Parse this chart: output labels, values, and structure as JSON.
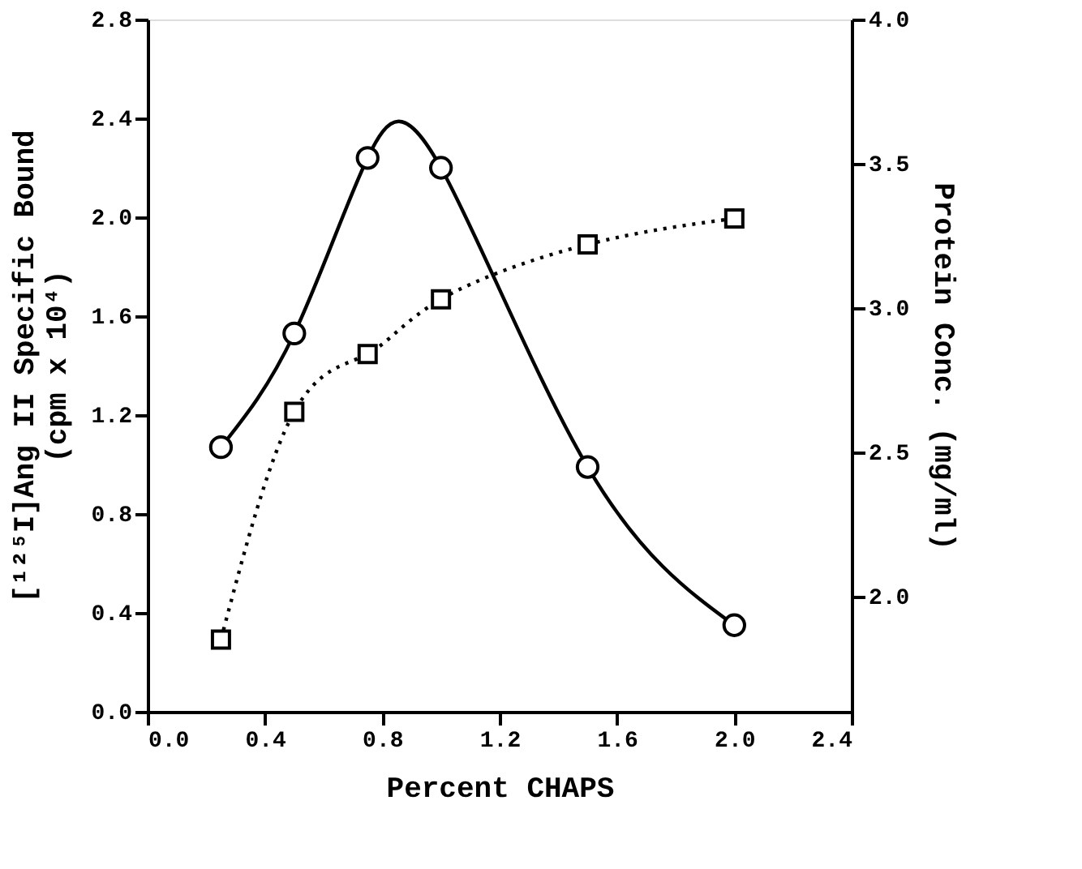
{
  "chart_data": {
    "type": "line",
    "xlabel": "Percent CHAPS",
    "ylabel": "[¹²⁵I]Ang II Specific Bound\n(cpm x 10⁴)",
    "y2label": "Protein Conc. (mg/ml)",
    "x": [
      0.25,
      0.5,
      0.75,
      1.0,
      1.5,
      2.0
    ],
    "series": [
      {
        "color": "#000000",
        "values": [
          1.07,
          1.53,
          2.24,
          2.2,
          0.99,
          0.35
        ],
        "marker": "circle",
        "line_style": "solid"
      },
      {
        "color": "#000000",
        "values": [
          1.85,
          2.64,
          2.84,
          3.03,
          3.22,
          3.31
        ],
        "marker": "square",
        "line_style": "dotted",
        "axis": "y2"
      }
    ],
    "xlim": [
      0.0,
      2.4
    ],
    "xticks": [
      {
        "value": 0.0,
        "label": "0.0"
      },
      0.4,
      0.8,
      1.2,
      1.6,
      {
        "value": 2.0,
        "label": "2.0"
      },
      2.4
    ],
    "ylim": [
      0.0,
      2.8
    ],
    "yticks": [
      {
        "value": 0.0,
        "label": "0.0"
      },
      0.4,
      0.8,
      1.2,
      1.6,
      {
        "value": 2.0,
        "label": "2.0"
      },
      2.4,
      2.8
    ],
    "y2lim": [
      1.6,
      4.0
    ],
    "y2ticks": [
      {
        "value": 2.0,
        "label": "2.0"
      },
      2.5,
      {
        "value": 3.0,
        "label": "3.0"
      },
      3.5,
      {
        "value": 4.0,
        "label": "4.0"
      }
    ],
    "grid": false
  }
}
